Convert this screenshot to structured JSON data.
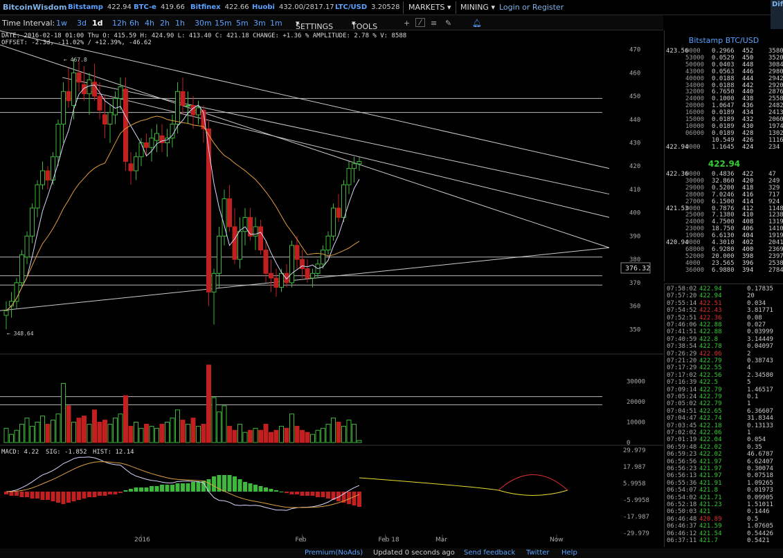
{
  "brand": "BitcoinWisdom",
  "exchanges": [
    {
      "name": "Bitstamp",
      "price": "422.94"
    },
    {
      "name": "BTC-e",
      "price": "419.66"
    },
    {
      "name": "Bitfinex",
      "price": "422.66"
    },
    {
      "name": "Huobi",
      "price": "432.00/2817.17"
    },
    {
      "name": "LTC/USD",
      "price": "3.20528"
    }
  ],
  "menus": {
    "markets": "MARKETS",
    "mining": "MINING",
    "login": "Login or Register",
    "cut_text": "Dif Nex Has"
  },
  "toolbar": {
    "label": "Time Interval:",
    "intervals": [
      "1w",
      "3d",
      "1d",
      "12h",
      "6h",
      "4h",
      "2h",
      "1h",
      "30m",
      "15m",
      "5m",
      "3m",
      "1m"
    ],
    "active": "1d",
    "settings": "SETTINGS",
    "tools": "TOOLS"
  },
  "info": {
    "line1": "DATE: 2016-02-18 01:00 Thu    O: 415.59    H: 424.90    L: 413.40    C: 421.18    CHANGE: +1.36 %    AMPLITUDE: 2.78 %    V: 8588",
    "line2": "OFFSET: -2.3d, -11.02% / +12.39%, -46.62"
  },
  "chart_data": {
    "type": "candlestick",
    "price_axis": [
      470,
      460,
      450,
      440,
      430,
      420,
      410,
      400,
      390,
      380,
      370,
      360,
      350
    ],
    "ylim": [
      340,
      477
    ],
    "high_label": "467.8",
    "low_label": "348.64",
    "cursor_price": "376.32",
    "volume_axis": [
      "30000",
      "20000",
      "10000",
      "0"
    ],
    "macd_axis": [
      "29.979",
      "17.987",
      "5.9958",
      "-5.9958",
      "-17.987",
      "-29.979"
    ],
    "macd_label": "MACD: 4.22",
    "sig_label": "SIG: -1.852",
    "hist_label": "HIST: 12.14",
    "x_labels": [
      {
        "label": "2016",
        "bar": 26
      },
      {
        "label": "Feb",
        "bar": 57
      },
      {
        "label": "Feb 18",
        "bar": 73
      },
      {
        "label": "Mar",
        "bar": 84
      },
      {
        "label": "Now",
        "bar": 106
      }
    ],
    "candles": [
      [
        356,
        362,
        350,
        358
      ],
      [
        360,
        366,
        355,
        362
      ],
      [
        362,
        372,
        359,
        370
      ],
      [
        370,
        384,
        368,
        382
      ],
      [
        381,
        392,
        378,
        390
      ],
      [
        390,
        404,
        387,
        402
      ],
      [
        402,
        414,
        398,
        412
      ],
      [
        412,
        422,
        410,
        418
      ],
      [
        418,
        420,
        410,
        414
      ],
      [
        414,
        426,
        412,
        424
      ],
      [
        424,
        440,
        420,
        438
      ],
      [
        438,
        456,
        430,
        452
      ],
      [
        452,
        462,
        445,
        448
      ],
      [
        446,
        466,
        440,
        460
      ],
      [
        460,
        466,
        452,
        456
      ],
      [
        455,
        463,
        448,
        451
      ],
      [
        451,
        460,
        442,
        457
      ],
      [
        456,
        464,
        448,
        450
      ],
      [
        450,
        456,
        440,
        444
      ],
      [
        442,
        450,
        432,
        438
      ],
      [
        438,
        446,
        430,
        443
      ],
      [
        442,
        452,
        438,
        449
      ],
      [
        449,
        458,
        444,
        454
      ],
      [
        453,
        458,
        418,
        422
      ],
      [
        421,
        426,
        412,
        418
      ],
      [
        418,
        426,
        414,
        424
      ],
      [
        424,
        432,
        420,
        430
      ],
      [
        430,
        434,
        424,
        428
      ],
      [
        428,
        436,
        422,
        432
      ],
      [
        431,
        438,
        426,
        434
      ],
      [
        433,
        438,
        426,
        430
      ],
      [
        430,
        436,
        424,
        432
      ],
      [
        432,
        442,
        428,
        438
      ],
      [
        438,
        456,
        434,
        452
      ],
      [
        452,
        458,
        442,
        446
      ],
      [
        446,
        452,
        438,
        446
      ],
      [
        446,
        450,
        436,
        442
      ],
      [
        442,
        448,
        438,
        445
      ],
      [
        444,
        446,
        430,
        436
      ],
      [
        436,
        440,
        360,
        366
      ],
      [
        366,
        376,
        352,
        374
      ],
      [
        374,
        394,
        368,
        390
      ],
      [
        390,
        410,
        386,
        406
      ],
      [
        406,
        412,
        392,
        394
      ],
      [
        394,
        402,
        378,
        380
      ],
      [
        380,
        398,
        376,
        392
      ],
      [
        392,
        402,
        386,
        398
      ],
      [
        398,
        402,
        388,
        390
      ],
      [
        390,
        398,
        384,
        394
      ],
      [
        394,
        397,
        382,
        384
      ],
      [
        384,
        388,
        370,
        374
      ],
      [
        374,
        380,
        366,
        372
      ],
      [
        372,
        376,
        364,
        368
      ],
      [
        368,
        376,
        366,
        374
      ],
      [
        374,
        378,
        368,
        370
      ],
      [
        370,
        388,
        368,
        386
      ],
      [
        386,
        390,
        376,
        380
      ],
      [
        380,
        384,
        372,
        376
      ],
      [
        376,
        380,
        370,
        372
      ],
      [
        372,
        376,
        368,
        374
      ],
      [
        374,
        380,
        372,
        378
      ],
      [
        378,
        386,
        376,
        384
      ],
      [
        384,
        392,
        382,
        390
      ],
      [
        390,
        404,
        388,
        402
      ],
      [
        402,
        408,
        396,
        398
      ],
      [
        398,
        414,
        396,
        412
      ],
      [
        412,
        422,
        408,
        419
      ],
      [
        419,
        424,
        413,
        421
      ],
      [
        421,
        424,
        418,
        422
      ]
    ],
    "volumes": [
      7,
      4,
      6,
      9,
      12,
      8,
      10,
      13,
      9,
      11,
      14,
      29,
      18,
      10,
      12,
      13,
      9,
      16,
      10,
      11,
      9,
      12,
      14,
      23,
      8,
      10,
      7,
      9,
      8,
      7,
      9,
      10,
      12,
      16,
      11,
      9,
      12,
      8,
      9,
      38,
      22,
      15,
      18,
      8,
      6,
      9,
      5,
      6,
      7,
      6,
      9,
      5,
      6,
      8,
      7,
      14,
      8,
      6,
      5,
      4,
      6,
      7,
      9,
      12,
      10,
      8,
      11,
      9,
      1
    ],
    "hist": [
      -2,
      -3,
      -3,
      -4,
      -4,
      -5,
      -5,
      -6,
      -6,
      -7,
      -8,
      -9,
      -8,
      -7,
      -6,
      -5,
      -4,
      -4,
      -3,
      -3,
      -2,
      -2,
      -1,
      1,
      2,
      3,
      3,
      3,
      4,
      4,
      5,
      5,
      5,
      6,
      6,
      6,
      7,
      7,
      8,
      9,
      11,
      12,
      12,
      12,
      11,
      9,
      7,
      6,
      5,
      4,
      3,
      2,
      1,
      0,
      -1,
      -2,
      -2,
      -3,
      -3,
      -3,
      -4,
      -4,
      -5,
      -6,
      -7,
      -8,
      -9,
      -10,
      -11
    ]
  },
  "orderbook": {
    "title": "Bitstamp BTC/USD",
    "asks": [
      [
        "423.56",
        "0000",
        "0.2966",
        "452",
        "3580"
      ],
      [
        "",
        "53000",
        "0.0529",
        "450",
        "3520"
      ],
      [
        "",
        "50000",
        "0.0403",
        "448",
        "3084"
      ],
      [
        "",
        "43000",
        "0.0563",
        "446",
        "2980"
      ],
      [
        "",
        "40000",
        "0.0188",
        "444",
        "2942"
      ],
      [
        "",
        "34000",
        "0.0188",
        "442",
        "2920"
      ],
      [
        "",
        "32000",
        "6.7650",
        "440",
        "2876"
      ],
      [
        "",
        "24000",
        "0.1000",
        "438",
        "2558"
      ],
      [
        "",
        "20000",
        "1.0647",
        "436",
        "2482"
      ],
      [
        "",
        "16000",
        "0.0189",
        "434",
        "2413"
      ],
      [
        "",
        "15000",
        "0.0189",
        "432",
        "2060"
      ],
      [
        "",
        "10000",
        "0.0189",
        "430",
        "1974"
      ],
      [
        "",
        "06000",
        "0.0189",
        "428",
        "1302"
      ],
      [
        "",
        "",
        "10.549",
        "426",
        "1116"
      ],
      [
        "422.94",
        "0000",
        "1.1645",
        "424",
        "234"
      ]
    ],
    "last": "422.94",
    "bids": [
      [
        "422.36",
        "0000",
        "0.4836",
        "422",
        "47"
      ],
      [
        "",
        "30000",
        "32.860",
        "420",
        "249"
      ],
      [
        "",
        "29000",
        "0.5200",
        "418",
        "329"
      ],
      [
        "",
        "28000",
        "7.0246",
        "416",
        "717"
      ],
      [
        "",
        "27000",
        "6.1500",
        "414",
        "924"
      ],
      [
        "421.53",
        "0000",
        "0.7876",
        "412",
        "1148"
      ],
      [
        "",
        "25000",
        "7.1380",
        "410",
        "1238"
      ],
      [
        "",
        "24000",
        "4.7500",
        "408",
        "1319"
      ],
      [
        "",
        "23000",
        "18.750",
        "406",
        "1410"
      ],
      [
        "",
        "19000",
        "6.6130",
        "404",
        "1919"
      ],
      [
        "420.94",
        "0000",
        "4.3010",
        "402",
        "2041"
      ],
      [
        "",
        "68000",
        "6.9280",
        "400",
        "2369"
      ],
      [
        "",
        "52000",
        "20.000",
        "398",
        "2397"
      ],
      [
        "",
        "4000",
        "23.565",
        "396",
        "2538"
      ],
      [
        "",
        "36000",
        "6.9880",
        "394",
        "2784"
      ]
    ]
  },
  "trades": [
    [
      "07:58:02",
      "422.94",
      "up",
      "0.17835"
    ],
    [
      "07:57:20",
      "422.94",
      "up",
      "20"
    ],
    [
      "07:55:14",
      "422.51",
      "dn",
      "0.034"
    ],
    [
      "07:54:52",
      "422.43",
      "dn",
      "3.81771"
    ],
    [
      "07:52:51",
      "422.36",
      "dn",
      "0.08"
    ],
    [
      "07:46:06",
      "422.88",
      "up",
      "0.027"
    ],
    [
      "07:41:51",
      "422.88",
      "up",
      "0.03999"
    ],
    [
      "07:40:59",
      "422.8",
      "up",
      "3.14449"
    ],
    [
      "07:38:54",
      "422.78",
      "up",
      "0.04097"
    ],
    [
      "07:26:29",
      "422.06",
      "dn",
      "2"
    ],
    [
      "07:21:20",
      "422.79",
      "up",
      "0.38743"
    ],
    [
      "07:17:29",
      "422.55",
      "up",
      "4"
    ],
    [
      "07:17:02",
      "422.56",
      "up",
      "2.34580"
    ],
    [
      "07:16:39",
      "422.5",
      "up",
      "5"
    ],
    [
      "07:09:14",
      "422.79",
      "up",
      "1.46517"
    ],
    [
      "07:05:24",
      "422.79",
      "up",
      "0.1"
    ],
    [
      "07:05:02",
      "422.79",
      "up",
      "1"
    ],
    [
      "07:04:51",
      "422.65",
      "up",
      "6.36607"
    ],
    [
      "07:04:47",
      "422.74",
      "up",
      "31.8344"
    ],
    [
      "07:03:45",
      "422.18",
      "up",
      "0.13133"
    ],
    [
      "07:02:02",
      "422.06",
      "up",
      "1"
    ],
    [
      "07:01:19",
      "422.04",
      "up",
      "0.054"
    ],
    [
      "06:59:48",
      "422.02",
      "up",
      "0.35"
    ],
    [
      "06:59:23",
      "422.02",
      "up",
      "46.6787"
    ],
    [
      "06:56:56",
      "421.97",
      "up",
      "6.62407"
    ],
    [
      "06:56:23",
      "421.97",
      "up",
      "0.30074"
    ],
    [
      "06:56:13",
      "421.97",
      "up",
      "0.07518"
    ],
    [
      "06:55:36",
      "421.91",
      "up",
      "1.09265"
    ],
    [
      "06:54:07",
      "421.8",
      "up",
      "0.01973"
    ],
    [
      "06:54:02",
      "421.71",
      "up",
      "0.09905"
    ],
    [
      "06:52:18",
      "421.23",
      "up",
      "1.51011"
    ],
    [
      "06:50:03",
      "421",
      "up",
      "0.1446"
    ],
    [
      "06:46:48",
      "420.89",
      "dn",
      "0.5"
    ],
    [
      "06:46:37",
      "421.59",
      "up",
      "1.07605"
    ],
    [
      "06:46:12",
      "421.54",
      "up",
      "0.54426"
    ],
    [
      "06:37:11",
      "421.7",
      "up",
      "0.5421"
    ]
  ],
  "footer": {
    "premium": "Premium(NoAds)",
    "updated": "Updated 0 seconds ago",
    "feedback": "Send feedback",
    "twitter": "Twitter",
    "help": "Help"
  }
}
